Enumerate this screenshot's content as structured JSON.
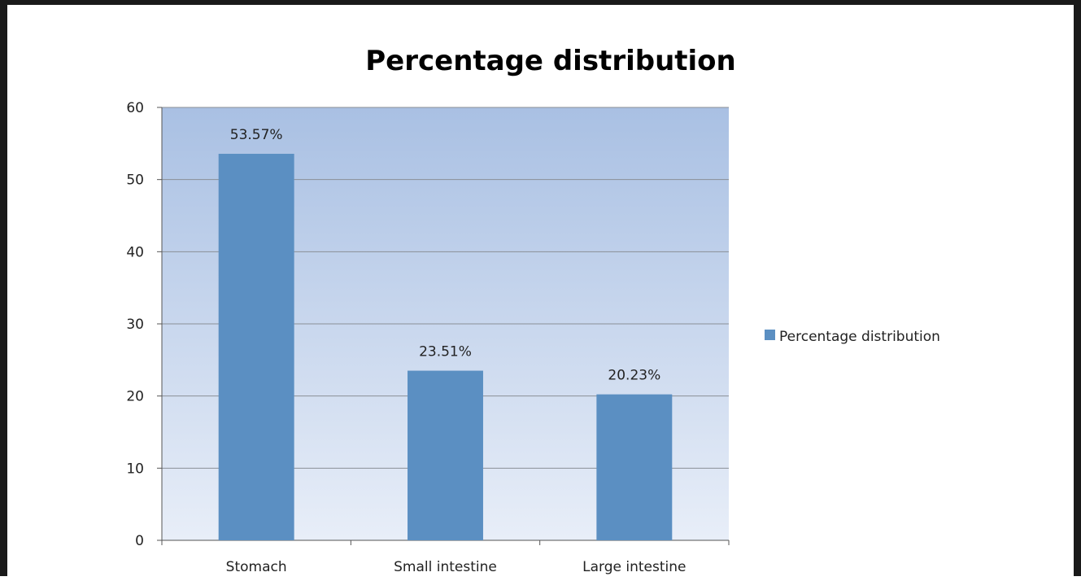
{
  "chart_data": {
    "type": "bar",
    "title": "Percentage distribution",
    "xlabel": "",
    "ylabel": "",
    "categories": [
      "Stomach",
      "Small intestine",
      "Large intestine"
    ],
    "series": [
      {
        "name": "Percentage distribution",
        "values": [
          53.57,
          23.51,
          20.23
        ],
        "data_labels": [
          "53.57%",
          "23.51%",
          "20.23%"
        ],
        "color": "#5b8fc2"
      }
    ],
    "yticks": [
      "0",
      "10",
      "20",
      "30",
      "40",
      "50",
      "60"
    ],
    "ylim": [
      0,
      60
    ],
    "grid": true,
    "legend_position": "right",
    "plot_background_gradient": [
      "#a9c0e3",
      "#e8eef8"
    ]
  }
}
